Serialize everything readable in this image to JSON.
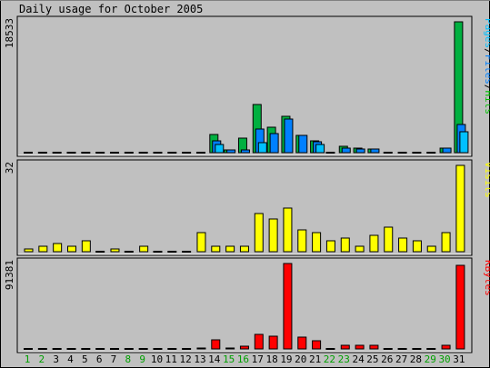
{
  "title": "Daily usage for October 2005",
  "chart_data": {
    "type": "bar",
    "categories": [
      "1",
      "2",
      "3",
      "4",
      "5",
      "6",
      "7",
      "8",
      "9",
      "10",
      "11",
      "12",
      "13",
      "14",
      "15",
      "16",
      "17",
      "18",
      "19",
      "20",
      "21",
      "22",
      "23",
      "24",
      "25",
      "26",
      "27",
      "28",
      "29",
      "30",
      "31"
    ],
    "weekend_days": [
      "1",
      "2",
      "8",
      "9",
      "15",
      "16",
      "22",
      "23",
      "29",
      "30"
    ],
    "panels": [
      {
        "id": "pages-files-hits",
        "ymax_label": "18533",
        "ymax": 18533,
        "legend": [
          "Pages",
          "/",
          "Files",
          "/",
          "Hits"
        ],
        "legend_colors": [
          "#00c0ff",
          "#000000",
          "#0080ff",
          "#000000",
          "#00c000"
        ],
        "series": [
          {
            "name": "Hits",
            "color": "#00b040",
            "values": [
              0,
              0,
              0,
              0,
              0,
              0,
              0,
              0,
              0,
              0,
              0,
              0,
              0,
              2550,
              330,
              2000,
              6850,
              3590,
              5140,
              2460,
              1630,
              0,
              950,
              590,
              540,
              0,
              0,
              0,
              0,
              690,
              18533
            ]
          },
          {
            "name": "Files",
            "color": "#0080ff",
            "values": [
              0,
              0,
              0,
              0,
              0,
              0,
              0,
              0,
              0,
              0,
              0,
              0,
              0,
              1670,
              330,
              330,
              3340,
              2760,
              4780,
              2390,
              1490,
              0,
              680,
              510,
              540,
              0,
              0,
              0,
              0,
              690,
              3980
            ]
          },
          {
            "name": "Pages",
            "color": "#00c0ff",
            "values": [
              0,
              0,
              0,
              0,
              0,
              0,
              0,
              0,
              0,
              0,
              0,
              0,
              0,
              1100,
              0,
              0,
              1430,
              0,
              0,
              0,
              1140,
              0,
              0,
              0,
              0,
              0,
              0,
              0,
              0,
              0,
              2940
            ]
          }
        ]
      },
      {
        "id": "visits",
        "ymax_label": "32",
        "ymax": 32,
        "legend": [
          "Visits"
        ],
        "legend_colors": [
          "#ffff00"
        ],
        "series": [
          {
            "name": "Visits",
            "color": "#ffff00",
            "values": [
              1,
              2,
              3,
              2,
              4,
              0,
              1,
              0,
              2,
              0,
              0,
              0,
              7,
              2,
              2,
              2,
              14,
              12,
              16,
              8,
              7,
              4,
              5,
              2,
              6,
              9,
              5,
              4,
              2,
              7,
              32
            ]
          }
        ]
      },
      {
        "id": "kbytes",
        "ymax_label": "91381",
        "ymax": 91381,
        "legend": [
          "KBytes"
        ],
        "legend_colors": [
          "#ff0000"
        ],
        "series": [
          {
            "name": "KBytes",
            "color": "#ff0000",
            "values": [
              0,
              0,
              0,
              0,
              0,
              0,
              0,
              0,
              0,
              0,
              0,
              0,
              1000,
              9400,
              1000,
              2900,
              15900,
              13500,
              91381,
              12500,
              9000,
              0,
              4300,
              4300,
              3600,
              0,
              0,
              0,
              0,
              3600,
              89800
            ]
          }
        ]
      }
    ]
  }
}
